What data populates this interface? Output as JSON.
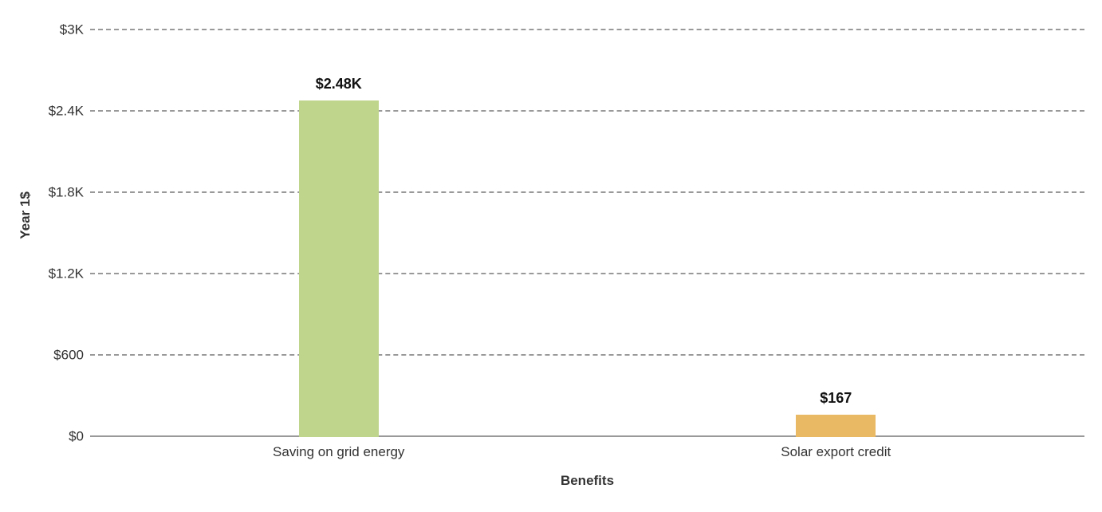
{
  "chart_data": {
    "type": "bar",
    "title": "",
    "categories": [
      "Saving on grid energy",
      "Solar export credit"
    ],
    "values": [
      2480,
      167
    ],
    "value_labels": [
      "$2.48K",
      "$167"
    ],
    "bar_colors": [
      "#BFD58B",
      "#E9B964"
    ],
    "xlabel": "Benefits",
    "ylabel": "Year 1$",
    "ylim": [
      0,
      3000
    ],
    "yticks": [
      {
        "value": 0,
        "label": "$0"
      },
      {
        "value": 600,
        "label": "$600"
      },
      {
        "value": 1200,
        "label": "$1.2K"
      },
      {
        "value": 1800,
        "label": "$1.8K"
      },
      {
        "value": 2400,
        "label": "$2.4K"
      },
      {
        "value": 3000,
        "label": "$3K"
      }
    ],
    "grid": "horizontal-dashed",
    "legend_position": "none",
    "colors": {
      "gridline": "#999999",
      "axis_line": "#999999",
      "tick_text": "#333333",
      "value_label_text": "#111111",
      "background": "#ffffff"
    }
  }
}
